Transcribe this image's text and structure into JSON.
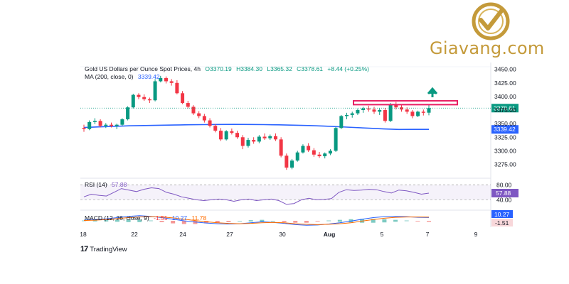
{
  "brand": {
    "name": "Giavang.com",
    "color": "#c49a3a",
    "icon": "checkmark-in-circle-logo"
  },
  "legend": {
    "title": "Gold US Dollars per Ounce Spot Prices, 4h",
    "open": "O3370.19",
    "high": "H3384.30",
    "low": "L3365.32",
    "close": "C3378.61",
    "change": "+8.44 (+0.25%)",
    "ma_label": "MA (200, close, 0)",
    "ma_value": "3339.42",
    "rsi_label": "RSI (14)",
    "rsi_value": "57.88",
    "macd_label": "MACD (12, 26, close, 9)",
    "macd_values": [
      "-1.51",
      "10.27",
      "11.78"
    ]
  },
  "footer": {
    "tradingview": "TradingView"
  },
  "colors": {
    "up": "#089981",
    "down": "#f23645",
    "ma": "#2962ff",
    "rsi": "#7e57c2",
    "macd": "#2962ff",
    "signal": "#ff6d00",
    "resistance": "#e91e63",
    "arrow": "#089981"
  },
  "chart_data": {
    "type": "candlestick",
    "price_axis": {
      "ticks": [
        "3450.00",
        "3425.00",
        "3400.00",
        "3375.00",
        "3350.00",
        "3325.00",
        "3300.00",
        "3275.00"
      ],
      "range": [
        3260,
        3460
      ]
    },
    "time_axis": {
      "ticks": [
        "18",
        "22",
        "24",
        "27",
        "30",
        "Aug",
        "5",
        "7",
        "9"
      ]
    },
    "candles": [
      [
        3342,
        3348,
        3335,
        3340
      ],
      [
        3340,
        3356,
        3338,
        3353
      ],
      [
        3353,
        3360,
        3349,
        3355
      ],
      [
        3355,
        3358,
        3343,
        3346
      ],
      [
        3346,
        3351,
        3342,
        3348
      ],
      [
        3348,
        3352,
        3343,
        3346
      ],
      [
        3346,
        3350,
        3340,
        3348
      ],
      [
        3348,
        3360,
        3346,
        3358
      ],
      [
        3358,
        3382,
        3356,
        3380
      ],
      [
        3380,
        3405,
        3378,
        3403
      ],
      [
        3403,
        3406,
        3395,
        3399
      ],
      [
        3399,
        3404,
        3392,
        3395
      ],
      [
        3395,
        3398,
        3388,
        3393
      ],
      [
        3393,
        3432,
        3391,
        3428
      ],
      [
        3428,
        3438,
        3426,
        3434
      ],
      [
        3434,
        3437,
        3424,
        3428
      ],
      [
        3428,
        3432,
        3420,
        3425
      ],
      [
        3425,
        3430,
        3404,
        3406
      ],
      [
        3406,
        3410,
        3386,
        3388
      ],
      [
        3388,
        3392,
        3378,
        3381
      ],
      [
        3381,
        3384,
        3366,
        3369
      ],
      [
        3369,
        3373,
        3360,
        3364
      ],
      [
        3364,
        3368,
        3352,
        3356
      ],
      [
        3356,
        3360,
        3343,
        3346
      ],
      [
        3346,
        3349,
        3334,
        3337
      ],
      [
        3337,
        3342,
        3318,
        3321
      ],
      [
        3321,
        3338,
        3319,
        3336
      ],
      [
        3336,
        3341,
        3330,
        3333
      ],
      [
        3333,
        3337,
        3322,
        3325
      ],
      [
        3325,
        3329,
        3303,
        3309
      ],
      [
        3309,
        3324,
        3306,
        3320
      ],
      [
        3320,
        3325,
        3313,
        3317
      ],
      [
        3317,
        3329,
        3314,
        3326
      ],
      [
        3326,
        3332,
        3320,
        3323
      ],
      [
        3323,
        3330,
        3320,
        3327
      ],
      [
        3327,
        3332,
        3318,
        3321
      ],
      [
        3321,
        3325,
        3288,
        3291
      ],
      [
        3291,
        3295,
        3265,
        3269
      ],
      [
        3269,
        3285,
        3266,
        3282
      ],
      [
        3282,
        3300,
        3280,
        3297
      ],
      [
        3297,
        3312,
        3295,
        3309
      ],
      [
        3309,
        3314,
        3298,
        3301
      ],
      [
        3301,
        3305,
        3289,
        3293
      ],
      [
        3293,
        3298,
        3287,
        3290
      ],
      [
        3290,
        3297,
        3286,
        3295
      ],
      [
        3295,
        3303,
        3292,
        3300
      ],
      [
        3300,
        3344,
        3298,
        3342
      ],
      [
        3342,
        3366,
        3340,
        3364
      ],
      [
        3364,
        3370,
        3358,
        3366
      ],
      [
        3366,
        3372,
        3361,
        3369
      ],
      [
        3369,
        3378,
        3366,
        3375
      ],
      [
        3375,
        3381,
        3370,
        3378
      ],
      [
        3378,
        3383,
        3372,
        3376
      ],
      [
        3376,
        3381,
        3368,
        3372
      ],
      [
        3372,
        3378,
        3366,
        3375
      ],
      [
        3375,
        3379,
        3352,
        3355
      ],
      [
        3355,
        3388,
        3353,
        3385
      ],
      [
        3385,
        3390,
        3376,
        3380
      ],
      [
        3380,
        3384,
        3372,
        3376
      ],
      [
        3376,
        3380,
        3368,
        3372
      ],
      [
        3372,
        3375,
        3360,
        3364
      ],
      [
        3364,
        3374,
        3362,
        3372
      ],
      [
        3372,
        3376,
        3365,
        3370
      ],
      [
        3370.19,
        3384.3,
        3365.32,
        3378.61
      ]
    ],
    "ma200": [
      3343,
      3344,
      3345,
      3346,
      3346.5,
      3347,
      3347.5,
      3348,
      3348.3,
      3348.5,
      3348.6,
      3348.5,
      3348.2,
      3347.8,
      3347.2,
      3346.5,
      3345.5,
      3344.3,
      3343,
      3341.6,
      3340.2,
      3339.4,
      3339.42,
      3339.42
    ],
    "resistance": {
      "low": 3385,
      "high": 3392
    },
    "rsi": {
      "levels": [
        80,
        40
      ],
      "values": [
        48,
        55,
        52,
        50,
        60,
        70,
        66,
        62,
        68,
        72,
        70,
        60,
        55,
        48,
        44,
        40,
        38,
        40,
        42,
        40,
        36,
        40,
        42,
        38,
        40,
        42,
        38,
        28,
        30,
        40,
        44,
        40,
        41,
        43,
        60,
        67,
        65,
        66,
        68,
        67,
        62,
        58,
        66,
        64,
        60,
        55,
        57.88
      ]
    },
    "macd": {
      "macd": [
        2,
        4,
        6,
        10,
        14,
        16,
        14,
        10,
        5,
        0,
        -4,
        -7,
        -9,
        -10,
        -9,
        -6,
        -3,
        -5,
        -8,
        -12,
        -14,
        -13,
        -10,
        -6,
        -1,
        5,
        10,
        13,
        14,
        13,
        11,
        10.27
      ],
      "signal": [
        1,
        2,
        4,
        7,
        10,
        12,
        13,
        12,
        9,
        5,
        1,
        -3,
        -6,
        -8,
        -9,
        -8,
        -6,
        -5,
        -6,
        -9,
        -11,
        -12,
        -11,
        -9,
        -6,
        -1,
        4,
        8,
        11,
        12,
        12,
        11.78
      ],
      "histogram_last": -1.51
    }
  }
}
